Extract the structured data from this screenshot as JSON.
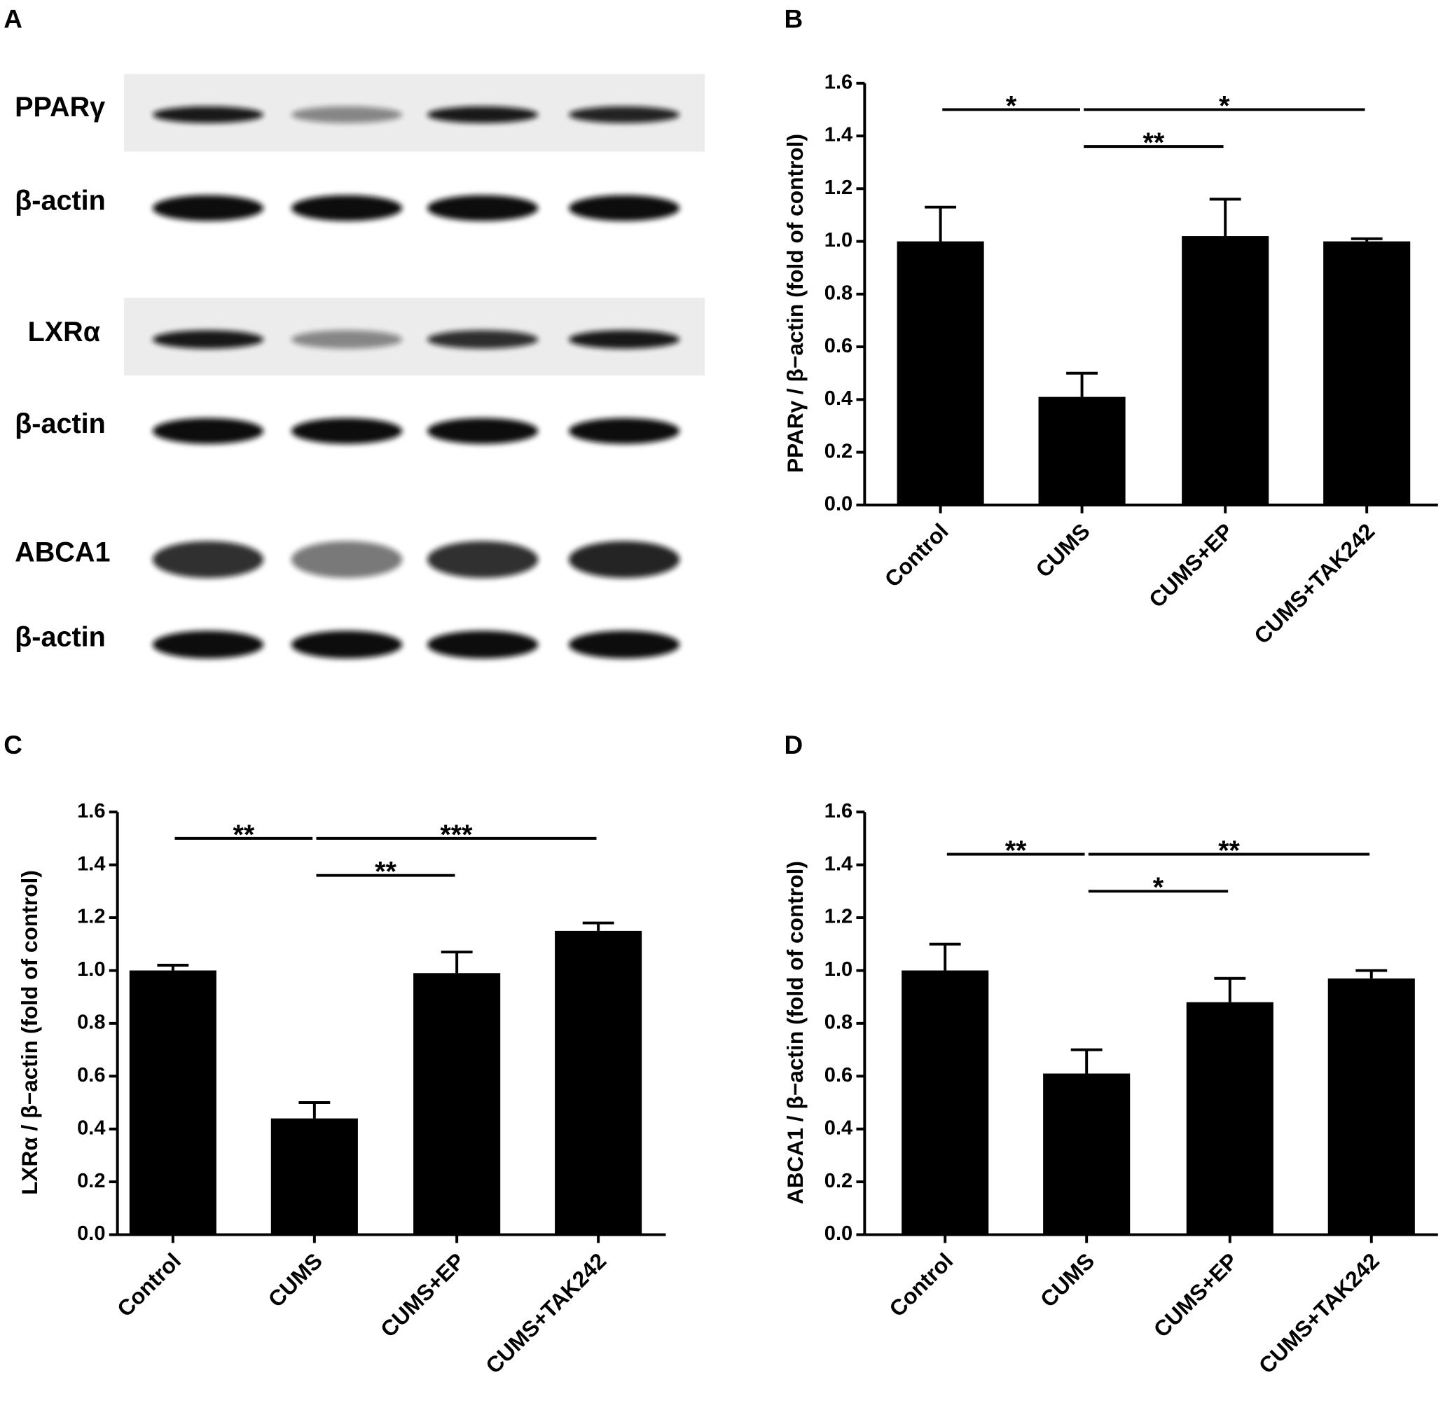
{
  "blot": {
    "panel": "A",
    "rows": [
      "PPARγ",
      "β-actin",
      "LXRα",
      "β-actin",
      "ABCA1",
      "β-actin"
    ]
  },
  "chart_data": [
    {
      "type": "bar",
      "panel": "B",
      "ylabel": "PPARγ / β−actin (fold of control)",
      "categories": [
        "Control",
        "CUMS",
        "CUMS+EP",
        "CUMS+TAK242"
      ],
      "values": [
        1.0,
        0.41,
        1.02,
        1.0
      ],
      "errors": [
        0.13,
        0.09,
        0.14,
        0.01
      ],
      "color": "#000000",
      "ylim": [
        0,
        1.6
      ],
      "yticks": [
        {
          "value": 0,
          "label": "0.0"
        },
        {
          "value": 0.2,
          "label": "0.2"
        },
        {
          "value": 0.4,
          "label": "0.4"
        },
        {
          "value": 0.6,
          "label": "0.6"
        },
        {
          "value": 0.8,
          "label": "0.8"
        },
        {
          "value": 1,
          "label": "1.0"
        },
        {
          "value": 1.2,
          "label": "1.2"
        },
        {
          "value": 1.4,
          "label": "1.4"
        },
        {
          "value": 1.6,
          "label": "1.6"
        }
      ],
      "annotations": [
        {
          "label": "*",
          "x": [
            0,
            1
          ],
          "y": 1.5
        },
        {
          "label": "*",
          "x": [
            1,
            3
          ],
          "y": 1.5
        },
        {
          "label": "**",
          "x": [
            1,
            2
          ],
          "y": 1.36
        }
      ]
    },
    {
      "type": "bar",
      "panel": "C",
      "ylabel": "LXRα / β−actin (fold of control)",
      "categories": [
        "Control",
        "CUMS",
        "CUMS+EP",
        "CUMS+TAK242"
      ],
      "values": [
        1.0,
        0.44,
        0.99,
        1.15
      ],
      "errors": [
        0.02,
        0.06,
        0.08,
        0.03
      ],
      "color": "#000000",
      "ylim": [
        0,
        1.6
      ],
      "yticks": [
        {
          "value": 0,
          "label": "0.0"
        },
        {
          "value": 0.2,
          "label": "0.2"
        },
        {
          "value": 0.4,
          "label": "0.4"
        },
        {
          "value": 0.6,
          "label": "0.6"
        },
        {
          "value": 0.8,
          "label": "0.8"
        },
        {
          "value": 1,
          "label": "1.0"
        },
        {
          "value": 1.2,
          "label": "1.2"
        },
        {
          "value": 1.4,
          "label": "1.4"
        },
        {
          "value": 1.6,
          "label": "1.6"
        }
      ],
      "annotations": [
        {
          "label": "**",
          "x": [
            0,
            1
          ],
          "y": 1.5
        },
        {
          "label": "***",
          "x": [
            1,
            3
          ],
          "y": 1.5
        },
        {
          "label": "**",
          "x": [
            1,
            2
          ],
          "y": 1.36
        }
      ]
    },
    {
      "type": "bar",
      "panel": "D",
      "ylabel": "ABCA1 / β−actin (fold of control)",
      "categories": [
        "Control",
        "CUMS",
        "CUMS+EP",
        "CUMS+TAK242"
      ],
      "values": [
        1.0,
        0.61,
        0.88,
        0.97
      ],
      "errors": [
        0.1,
        0.09,
        0.09,
        0.03
      ],
      "color": "#000000",
      "ylim": [
        0,
        1.6
      ],
      "yticks": [
        {
          "value": 0,
          "label": "0.0"
        },
        {
          "value": 0.2,
          "label": "0.2"
        },
        {
          "value": 0.4,
          "label": "0.4"
        },
        {
          "value": 0.6,
          "label": "0.6"
        },
        {
          "value": 0.8,
          "label": "0.8"
        },
        {
          "value": 1,
          "label": "1.0"
        },
        {
          "value": 1.2,
          "label": "1.2"
        },
        {
          "value": 1.4,
          "label": "1.4"
        },
        {
          "value": 1.6,
          "label": "1.6"
        }
      ],
      "annotations": [
        {
          "label": "**",
          "x": [
            0,
            1
          ],
          "y": 1.44
        },
        {
          "label": "**",
          "x": [
            1,
            3
          ],
          "y": 1.44
        },
        {
          "label": "*",
          "x": [
            1,
            2
          ],
          "y": 1.3
        }
      ]
    }
  ]
}
